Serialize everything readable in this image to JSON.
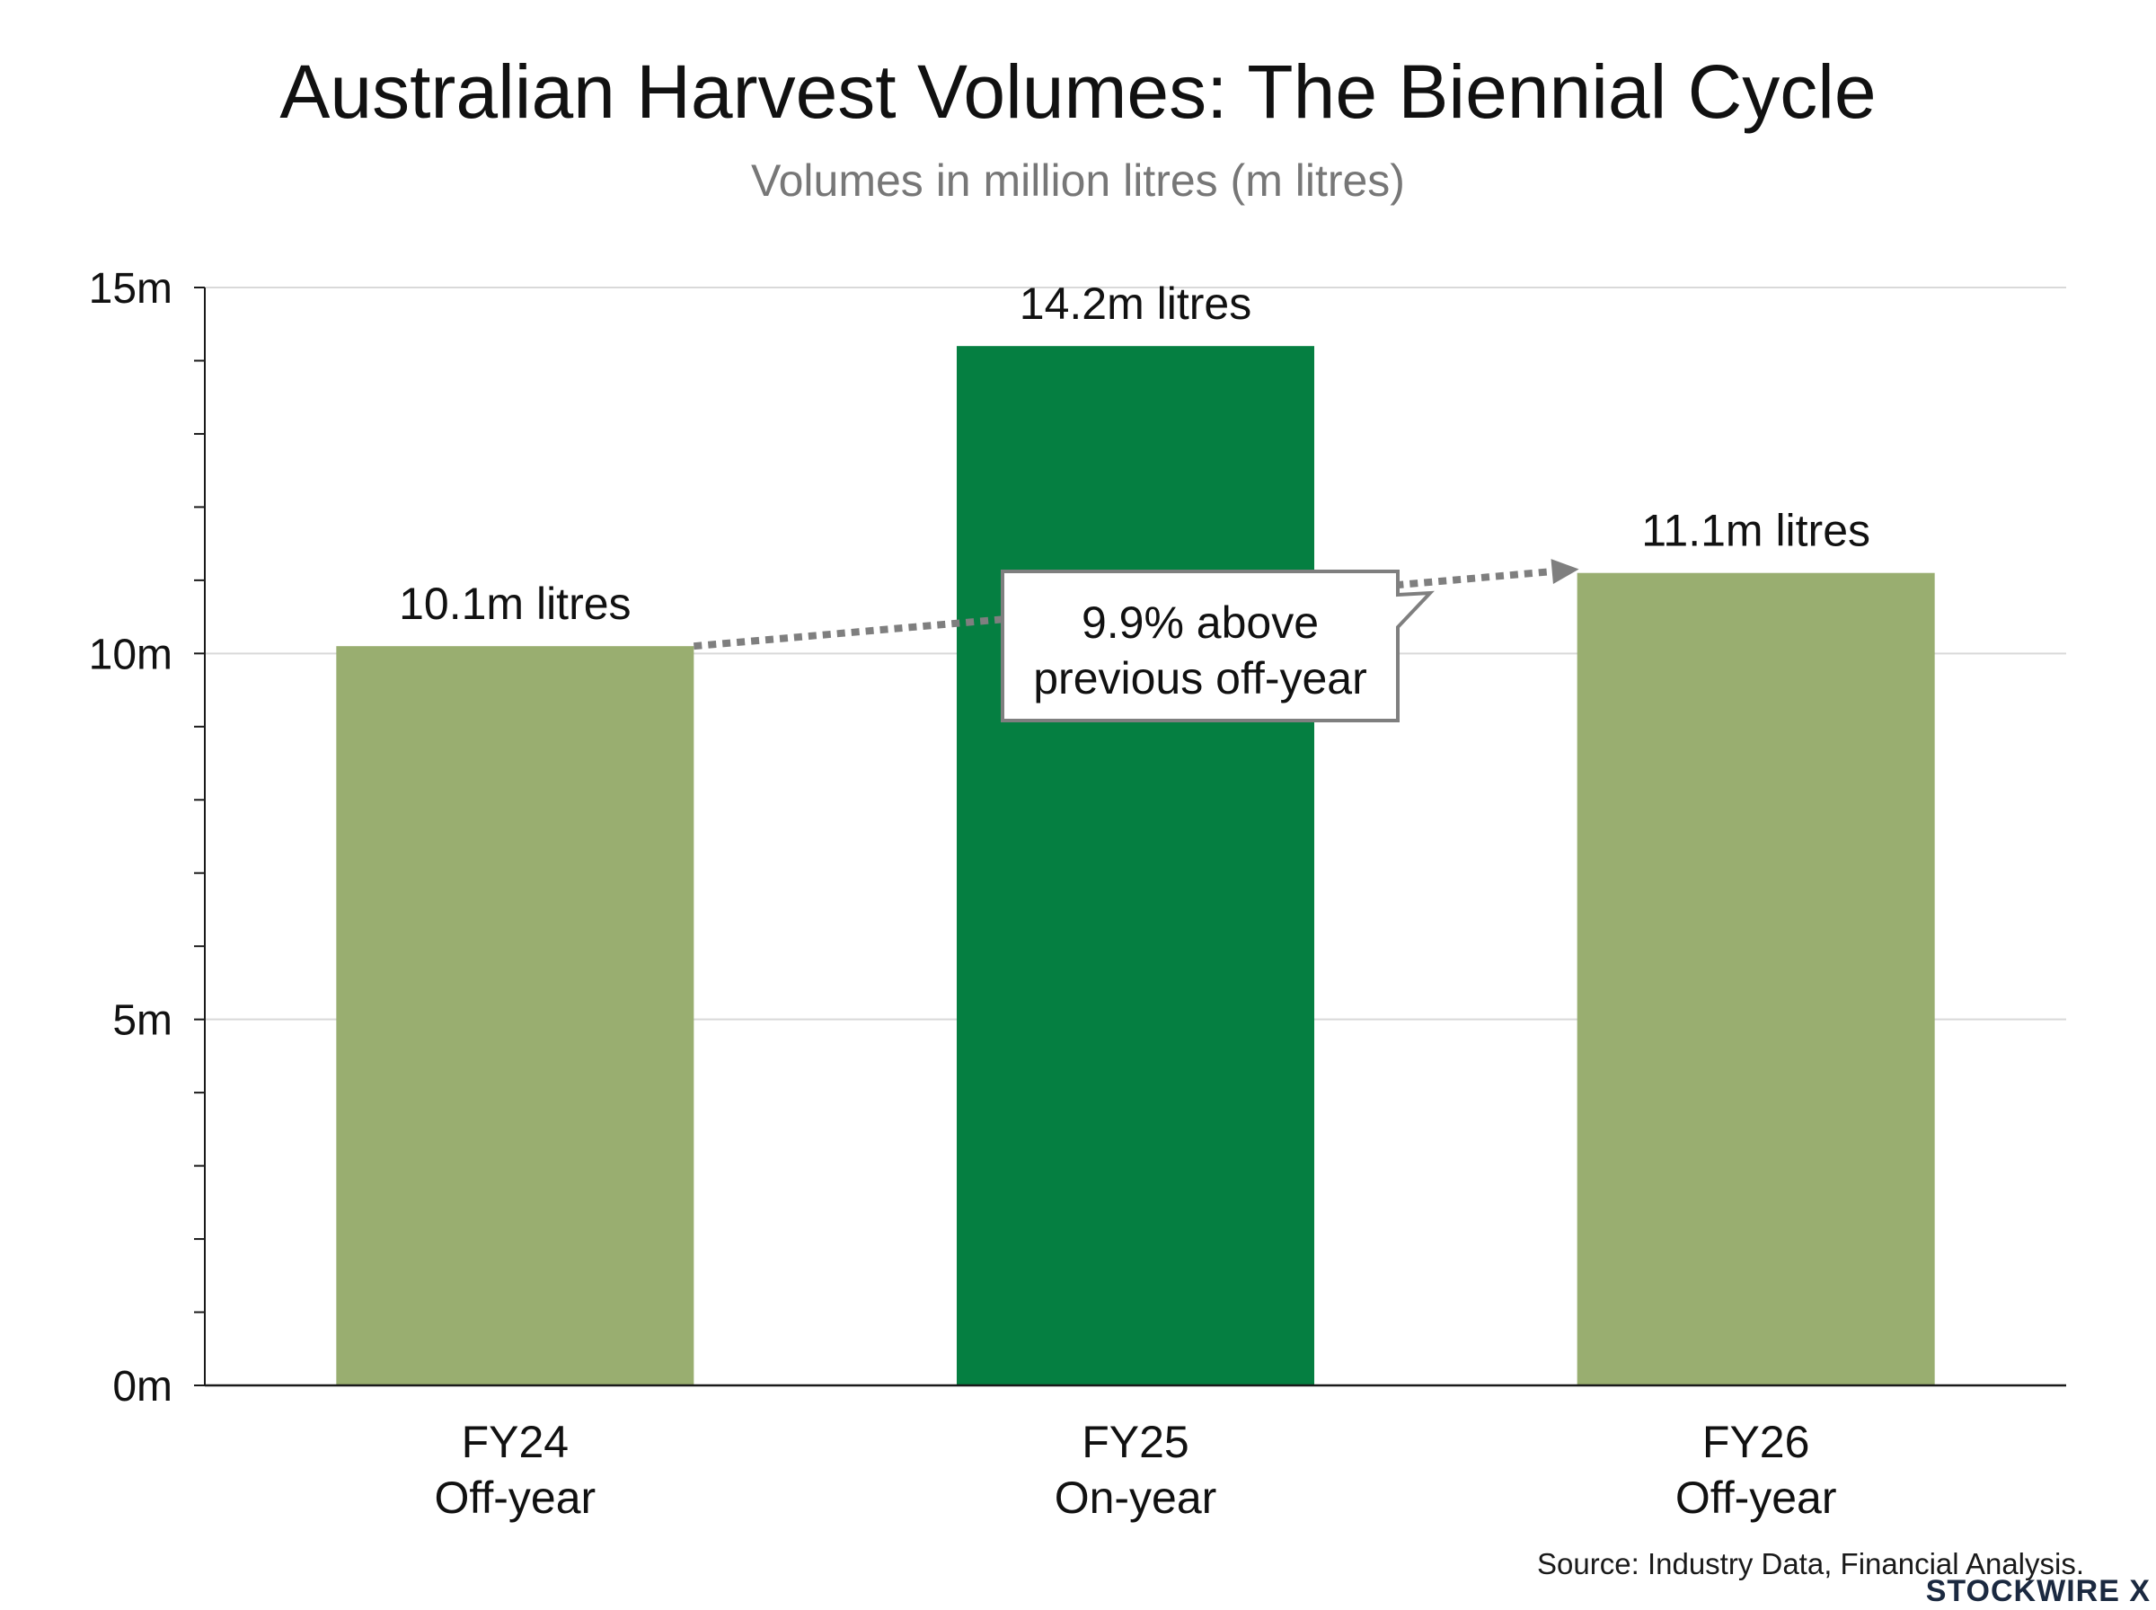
{
  "chart_data": {
    "type": "bar",
    "title": "Australian Harvest Volumes: The Biennial Cycle",
    "subtitle": "Volumes in million litres (m litres)",
    "categories": [
      [
        "FY24",
        "Off-year"
      ],
      [
        "FY25",
        "On-year"
      ],
      [
        "FY26",
        "Off-year"
      ]
    ],
    "values": [
      10.1,
      14.2,
      11.1
    ],
    "data_labels": [
      "10.1m litres",
      "14.2m litres",
      "11.1m litres"
    ],
    "bar_colors": [
      "#99ae70",
      "#057f41",
      "#99ae70"
    ],
    "ylim": [
      0,
      15
    ],
    "yticks": [
      {
        "value": 0,
        "label": "0m"
      },
      {
        "value": 5,
        "label": "5m"
      },
      {
        "value": 10,
        "label": "10m"
      },
      {
        "value": 15,
        "label": "15m"
      }
    ],
    "y_minor_step": 1,
    "grid": true,
    "xlabel": "",
    "ylabel": "",
    "annotation": {
      "lines": [
        "9.9% above",
        "previous off-year"
      ],
      "from_category": 0,
      "to_category": 2,
      "arrow_color": "#7f7f7f"
    }
  },
  "footer": {
    "source": "Source: Industry Data, Financial Analysis.",
    "brand": "STOCKWIRE X"
  }
}
